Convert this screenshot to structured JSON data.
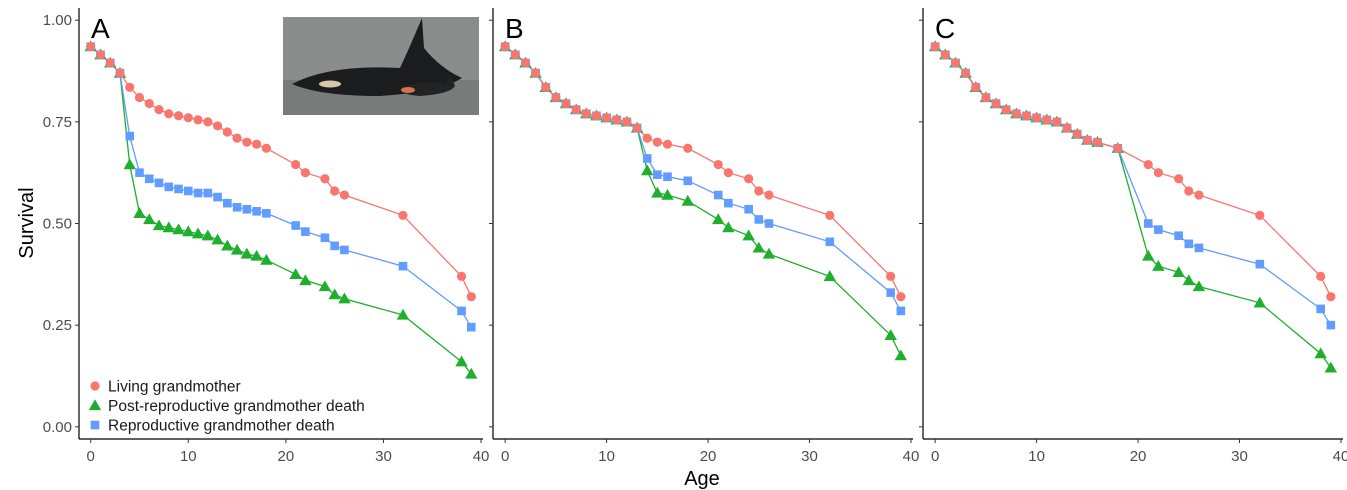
{
  "chart_data": {
    "type": "line",
    "ylabel": "Survival",
    "xlabel": "Age",
    "xlim": [
      -1.2,
      40.2
    ],
    "ylim": [
      -0.03,
      1.03
    ],
    "x_ticks": [
      0,
      10,
      20,
      30,
      40
    ],
    "y_ticks": [
      "0.00",
      "0.25",
      "0.50",
      "0.75",
      "1.00"
    ],
    "grid": false,
    "legend_position": "bottom-left",
    "colors": {
      "living": "#F8766D",
      "post": "#1FAF2D",
      "repro": "#619CFF"
    },
    "series_meta": [
      {
        "key": "living",
        "name": "Living grandmother",
        "marker": "circle"
      },
      {
        "key": "post",
        "name": "Post-reproductive grandmother death",
        "marker": "triangle"
      },
      {
        "key": "repro",
        "name": "Reproductive grandmother death",
        "marker": "square"
      }
    ],
    "panels": [
      {
        "label": "A",
        "series": {
          "living": [
            [
              0,
              0.935
            ],
            [
              1,
              0.915
            ],
            [
              2,
              0.895
            ],
            [
              3,
              0.87
            ],
            [
              4,
              0.835
            ],
            [
              5,
              0.81
            ],
            [
              6,
              0.795
            ],
            [
              7,
              0.78
            ],
            [
              8,
              0.77
            ],
            [
              9,
              0.765
            ],
            [
              10,
              0.76
            ],
            [
              11,
              0.755
            ],
            [
              12,
              0.75
            ],
            [
              13,
              0.74
            ],
            [
              14,
              0.725
            ],
            [
              15,
              0.71
            ],
            [
              16,
              0.7
            ],
            [
              17,
              0.695
            ],
            [
              18,
              0.685
            ],
            [
              21,
              0.645
            ],
            [
              22,
              0.625
            ],
            [
              24,
              0.61
            ],
            [
              25,
              0.58
            ],
            [
              26,
              0.57
            ],
            [
              32,
              0.52
            ],
            [
              38,
              0.37
            ],
            [
              39,
              0.32
            ]
          ],
          "post": [
            [
              0,
              0.935
            ],
            [
              1,
              0.915
            ],
            [
              2,
              0.895
            ],
            [
              3,
              0.87
            ],
            [
              4,
              0.645
            ],
            [
              5,
              0.525
            ],
            [
              6,
              0.51
            ],
            [
              7,
              0.495
            ],
            [
              8,
              0.49
            ],
            [
              9,
              0.485
            ],
            [
              10,
              0.48
            ],
            [
              11,
              0.475
            ],
            [
              12,
              0.47
            ],
            [
              13,
              0.46
            ],
            [
              14,
              0.445
            ],
            [
              15,
              0.435
            ],
            [
              16,
              0.425
            ],
            [
              17,
              0.42
            ],
            [
              18,
              0.41
            ],
            [
              21,
              0.375
            ],
            [
              22,
              0.36
            ],
            [
              24,
              0.345
            ],
            [
              25,
              0.325
            ],
            [
              26,
              0.315
            ],
            [
              32,
              0.275
            ],
            [
              38,
              0.16
            ],
            [
              39,
              0.13
            ]
          ],
          "repro": [
            [
              0,
              0.935
            ],
            [
              1,
              0.915
            ],
            [
              2,
              0.895
            ],
            [
              3,
              0.87
            ],
            [
              4,
              0.715
            ],
            [
              5,
              0.625
            ],
            [
              6,
              0.61
            ],
            [
              7,
              0.6
            ],
            [
              8,
              0.59
            ],
            [
              9,
              0.585
            ],
            [
              10,
              0.58
            ],
            [
              11,
              0.575
            ],
            [
              12,
              0.575
            ],
            [
              13,
              0.565
            ],
            [
              14,
              0.55
            ],
            [
              15,
              0.54
            ],
            [
              16,
              0.535
            ],
            [
              17,
              0.53
            ],
            [
              18,
              0.525
            ],
            [
              21,
              0.495
            ],
            [
              22,
              0.48
            ],
            [
              24,
              0.465
            ],
            [
              25,
              0.445
            ],
            [
              26,
              0.435
            ],
            [
              32,
              0.395
            ],
            [
              38,
              0.285
            ],
            [
              39,
              0.245
            ]
          ]
        }
      },
      {
        "label": "B",
        "series": {
          "living": [
            [
              0,
              0.935
            ],
            [
              1,
              0.915
            ],
            [
              2,
              0.895
            ],
            [
              3,
              0.87
            ],
            [
              4,
              0.835
            ],
            [
              5,
              0.81
            ],
            [
              6,
              0.795
            ],
            [
              7,
              0.78
            ],
            [
              8,
              0.77
            ],
            [
              9,
              0.765
            ],
            [
              10,
              0.76
            ],
            [
              11,
              0.755
            ],
            [
              12,
              0.75
            ],
            [
              13,
              0.735
            ],
            [
              14,
              0.71
            ],
            [
              15,
              0.7
            ],
            [
              16,
              0.695
            ],
            [
              18,
              0.685
            ],
            [
              21,
              0.645
            ],
            [
              22,
              0.625
            ],
            [
              24,
              0.61
            ],
            [
              25,
              0.58
            ],
            [
              26,
              0.57
            ],
            [
              32,
              0.52
            ],
            [
              38,
              0.37
            ],
            [
              39,
              0.32
            ]
          ],
          "post": [
            [
              0,
              0.935
            ],
            [
              1,
              0.915
            ],
            [
              2,
              0.895
            ],
            [
              3,
              0.87
            ],
            [
              4,
              0.835
            ],
            [
              5,
              0.81
            ],
            [
              6,
              0.795
            ],
            [
              7,
              0.78
            ],
            [
              8,
              0.77
            ],
            [
              9,
              0.765
            ],
            [
              10,
              0.76
            ],
            [
              11,
              0.755
            ],
            [
              12,
              0.75
            ],
            [
              13,
              0.735
            ],
            [
              14,
              0.63
            ],
            [
              15,
              0.575
            ],
            [
              16,
              0.57
            ],
            [
              18,
              0.555
            ],
            [
              21,
              0.51
            ],
            [
              22,
              0.49
            ],
            [
              24,
              0.47
            ],
            [
              25,
              0.44
            ],
            [
              26,
              0.425
            ],
            [
              32,
              0.37
            ],
            [
              38,
              0.225
            ],
            [
              39,
              0.175
            ]
          ],
          "repro": [
            [
              0,
              0.935
            ],
            [
              1,
              0.915
            ],
            [
              2,
              0.895
            ],
            [
              3,
              0.87
            ],
            [
              4,
              0.835
            ],
            [
              5,
              0.81
            ],
            [
              6,
              0.795
            ],
            [
              7,
              0.78
            ],
            [
              8,
              0.77
            ],
            [
              9,
              0.765
            ],
            [
              10,
              0.76
            ],
            [
              11,
              0.755
            ],
            [
              12,
              0.75
            ],
            [
              13,
              0.735
            ],
            [
              14,
              0.66
            ],
            [
              15,
              0.62
            ],
            [
              16,
              0.615
            ],
            [
              18,
              0.605
            ],
            [
              21,
              0.57
            ],
            [
              22,
              0.55
            ],
            [
              24,
              0.535
            ],
            [
              25,
              0.51
            ],
            [
              26,
              0.5
            ],
            [
              32,
              0.455
            ],
            [
              38,
              0.33
            ],
            [
              39,
              0.285
            ]
          ]
        }
      },
      {
        "label": "C",
        "series": {
          "living": [
            [
              0,
              0.935
            ],
            [
              1,
              0.915
            ],
            [
              2,
              0.895
            ],
            [
              3,
              0.87
            ],
            [
              4,
              0.835
            ],
            [
              5,
              0.81
            ],
            [
              6,
              0.795
            ],
            [
              7,
              0.78
            ],
            [
              8,
              0.77
            ],
            [
              9,
              0.765
            ],
            [
              10,
              0.76
            ],
            [
              11,
              0.755
            ],
            [
              12,
              0.75
            ],
            [
              13,
              0.735
            ],
            [
              14,
              0.72
            ],
            [
              15,
              0.705
            ],
            [
              16,
              0.7
            ],
            [
              18,
              0.685
            ],
            [
              21,
              0.645
            ],
            [
              22,
              0.625
            ],
            [
              24,
              0.61
            ],
            [
              25,
              0.58
            ],
            [
              26,
              0.57
            ],
            [
              32,
              0.52
            ],
            [
              38,
              0.37
            ],
            [
              39,
              0.32
            ]
          ],
          "post": [
            [
              0,
              0.935
            ],
            [
              1,
              0.915
            ],
            [
              2,
              0.895
            ],
            [
              3,
              0.87
            ],
            [
              4,
              0.835
            ],
            [
              5,
              0.81
            ],
            [
              6,
              0.795
            ],
            [
              7,
              0.78
            ],
            [
              8,
              0.77
            ],
            [
              9,
              0.765
            ],
            [
              10,
              0.76
            ],
            [
              11,
              0.755
            ],
            [
              12,
              0.75
            ],
            [
              13,
              0.735
            ],
            [
              14,
              0.72
            ],
            [
              15,
              0.705
            ],
            [
              16,
              0.7
            ],
            [
              18,
              0.685
            ],
            [
              21,
              0.42
            ],
            [
              22,
              0.395
            ],
            [
              24,
              0.38
            ],
            [
              25,
              0.36
            ],
            [
              26,
              0.345
            ],
            [
              32,
              0.305
            ],
            [
              38,
              0.18
            ],
            [
              39,
              0.145
            ]
          ],
          "repro": [
            [
              0,
              0.935
            ],
            [
              1,
              0.915
            ],
            [
              2,
              0.895
            ],
            [
              3,
              0.87
            ],
            [
              4,
              0.835
            ],
            [
              5,
              0.81
            ],
            [
              6,
              0.795
            ],
            [
              7,
              0.78
            ],
            [
              8,
              0.77
            ],
            [
              9,
              0.765
            ],
            [
              10,
              0.76
            ],
            [
              11,
              0.755
            ],
            [
              12,
              0.75
            ],
            [
              13,
              0.735
            ],
            [
              14,
              0.72
            ],
            [
              15,
              0.705
            ],
            [
              16,
              0.7
            ],
            [
              18,
              0.685
            ],
            [
              21,
              0.5
            ],
            [
              22,
              0.485
            ],
            [
              24,
              0.47
            ],
            [
              25,
              0.45
            ],
            [
              26,
              0.44
            ],
            [
              32,
              0.4
            ],
            [
              38,
              0.29
            ],
            [
              39,
              0.25
            ]
          ]
        }
      }
    ]
  }
}
